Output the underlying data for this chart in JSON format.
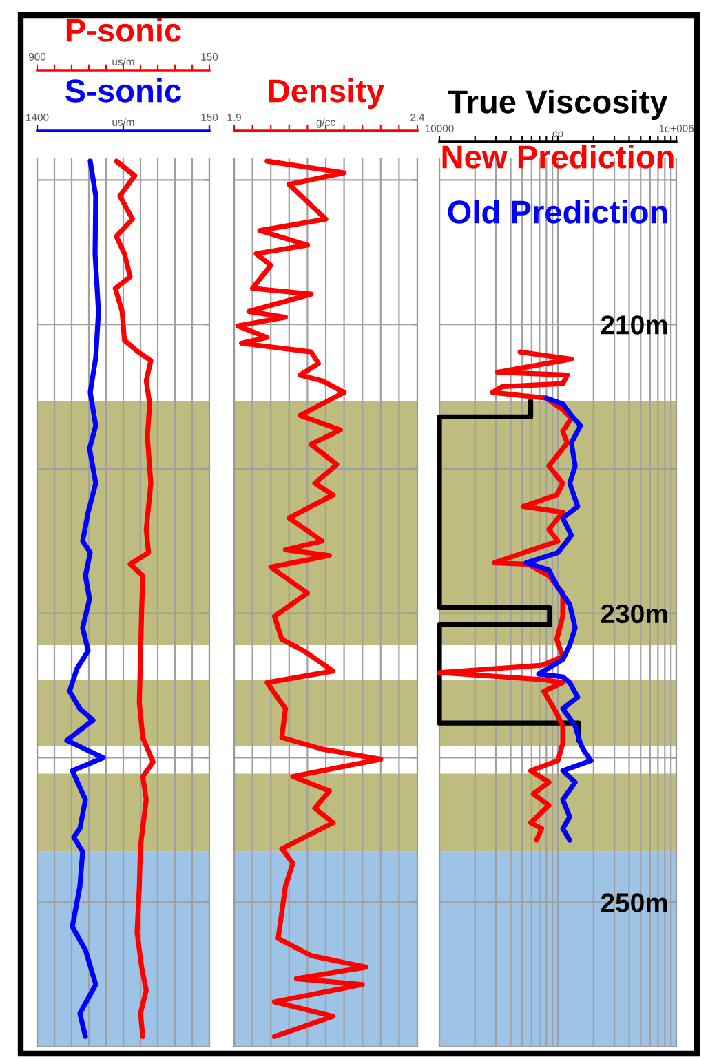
{
  "chart_data": [
    {
      "type": "line",
      "ylim": [
        260,
        198.5
      ],
      "yticks": [
        {
          "value": 200,
          "label": null
        },
        {
          "value": 210,
          "label": null
        },
        {
          "value": 220,
          "label": null
        },
        {
          "value": 230,
          "label": null
        },
        {
          "value": 240,
          "label": null
        },
        {
          "value": 250,
          "label": null
        }
      ],
      "tick_labels": "x",
      "grid": true,
      "xlim": [
        900,
        150
      ],
      "xticks": [
        900,
        {
          "value": 825,
          "label": null
        },
        {
          "value": 750,
          "label": null
        },
        {
          "value": 675,
          "label": null
        },
        {
          "value": 600,
          "label": null
        },
        {
          "value": 525,
          "label": null
        },
        {
          "value": 450,
          "label": null
        },
        {
          "value": 375,
          "label": null
        },
        {
          "value": 300,
          "label": null
        },
        {
          "value": 225,
          "label": null
        },
        150
      ],
      "xlabel": "us/m",
      "x2lim": [
        1400,
        150
      ],
      "x2ticks": [
        1400,
        {
          "value": 775,
          "label": null
        },
        150
      ],
      "x2label": "us/m",
      "bands": [
        {
          "axis": "y",
          "from": 215.3,
          "to": 232.2,
          "color": "#bfbc80"
        },
        {
          "axis": "y",
          "from": 234.6,
          "to": 239.2,
          "color": "#bfbc80"
        },
        {
          "axis": "y",
          "from": 241.1,
          "to": 246.5,
          "color": "#bfbc80"
        },
        {
          "axis": "y",
          "from": 246.5,
          "to": 260,
          "color": "#9dc3e6"
        }
      ],
      "series": [
        {
          "name": "P-sonic",
          "color": "#ff0000",
          "x": [
            555,
            475,
            540,
            485,
            555,
            520,
            495,
            560,
            530,
            520,
            460,
            405,
            425,
            410,
            420,
            405,
            425,
            415,
            495,
            440,
            445,
            450,
            455,
            440,
            395,
            440,
            425,
            450,
            455,
            465,
            445,
            425,
            450,
            440
          ],
          "values": [
            198.7,
            199.7,
            201.1,
            202.7,
            203.9,
            205.1,
            206.7,
            207.5,
            209.1,
            211.1,
            211.9,
            212.5,
            213.9,
            215.5,
            217.8,
            221.0,
            224.2,
            225.8,
            226.6,
            227.4,
            229.8,
            233.0,
            236.2,
            238.6,
            240.3,
            241.3,
            242.9,
            246.1,
            248.9,
            252.1,
            254.5,
            256.1,
            257.7,
            259.3
          ]
        },
        {
          "name": "S-sonic",
          "color": "#0000ff",
          "axis": "x2",
          "x": [
            1015,
            975,
            980,
            955,
            975,
            1015,
            975,
            1020,
            975,
            1030,
            1070,
            1015,
            1050,
            1020,
            1070,
            1030,
            1110,
            1165,
            1090,
            995,
            1185,
            920,
            1145,
            1050,
            1090,
            1135,
            1070,
            1090,
            1145,
            1050,
            975,
            1090,
            1050
          ],
          "values": [
            198.7,
            201.1,
            205.1,
            209.1,
            212.3,
            214.7,
            217.0,
            218.6,
            221.0,
            223.0,
            225.0,
            225.8,
            227.4,
            229.0,
            231.0,
            232.6,
            233.8,
            235.4,
            236.6,
            237.4,
            238.8,
            240.0,
            240.9,
            242.9,
            244.9,
            245.5,
            246.5,
            248.9,
            251.7,
            253.3,
            255.7,
            257.7,
            259.3
          ]
        }
      ]
    },
    {
      "type": "line",
      "ylim": [
        260,
        198.5
      ],
      "yticks": [
        {
          "value": 200,
          "label": null
        },
        {
          "value": 210,
          "label": null
        },
        {
          "value": 220,
          "label": null
        },
        {
          "value": 230,
          "label": null
        },
        {
          "value": 240,
          "label": null
        },
        {
          "value": 250,
          "label": null
        }
      ],
      "tick_labels": "x",
      "grid": true,
      "xlim": [
        1.9,
        2.4
      ],
      "xticks": [
        1.9,
        {
          "value": 1.95,
          "label": null
        },
        {
          "value": 2.0,
          "label": null
        },
        {
          "value": 2.05,
          "label": null
        },
        {
          "value": 2.1,
          "label": null
        },
        {
          "value": 2.15,
          "label": null
        },
        {
          "value": 2.2,
          "label": null
        },
        {
          "value": 2.25,
          "label": null
        },
        {
          "value": 2.3,
          "label": null
        },
        {
          "value": 2.35,
          "label": null
        },
        2.4
      ],
      "xlabel": "g/cc",
      "bands": [
        {
          "axis": "y",
          "from": 215.3,
          "to": 232.2,
          "color": "#bfbc80"
        },
        {
          "axis": "y",
          "from": 234.6,
          "to": 239.2,
          "color": "#bfbc80"
        },
        {
          "axis": "y",
          "from": 241.1,
          "to": 246.5,
          "color": "#bfbc80"
        },
        {
          "axis": "y",
          "from": 246.5,
          "to": 260,
          "color": "#9dc3e6"
        }
      ],
      "series": [
        {
          "name": "Density",
          "color": "#ff0000",
          "x": [
            1.99,
            2.2,
            2.05,
            2.15,
            1.97,
            2.1,
            1.96,
            2.0,
            1.95,
            2.11,
            1.94,
            2.04,
            1.91,
            1.99,
            1.92,
            2.11,
            2.13,
            2.08,
            2.14,
            2.2,
            2.08,
            2.19,
            2.11,
            2.18,
            2.12,
            2.17,
            2.05,
            2.14,
            2.04,
            2.16,
            2.0,
            2.1,
            2.01,
            2.03,
            2.09,
            2.17,
            1.99,
            2.04,
            2.03,
            2.14,
            2.3,
            2.06,
            2.16,
            2.12,
            2.17,
            2.03,
            2.06,
            2.04,
            2.02,
            2.11,
            2.26,
            2.07,
            2.25,
            2.01,
            2.17,
            2.01
          ],
          "values": [
            198.7,
            199.5,
            200.3,
            202.7,
            203.5,
            204.5,
            205.1,
            205.9,
            207.5,
            207.9,
            209.1,
            209.5,
            210.1,
            210.9,
            211.3,
            211.9,
            212.7,
            213.5,
            213.9,
            214.7,
            216.3,
            217.3,
            218.3,
            219.7,
            221.0,
            221.8,
            223.4,
            225.0,
            225.6,
            226.0,
            226.8,
            228.6,
            230.2,
            231.8,
            232.6,
            234.0,
            234.8,
            236.6,
            238.6,
            239.4,
            240.1,
            241.3,
            242.3,
            243.5,
            244.5,
            246.3,
            247.3,
            248.9,
            252.5,
            253.7,
            254.5,
            255.3,
            255.7,
            256.9,
            257.9,
            259.3
          ]
        }
      ]
    },
    {
      "type": "line",
      "log": "x",
      "ylim": [
        260,
        198.5
      ],
      "yticks": [
        {
          "value": 200,
          "label": null
        },
        {
          "value": 210,
          "label": "210m"
        },
        {
          "value": 220,
          "label": null
        },
        {
          "value": 230,
          "label": "230m"
        },
        {
          "value": 240,
          "label": null
        },
        {
          "value": 250,
          "label": "250m"
        }
      ],
      "grid": true,
      "xlim": [
        10000,
        1000000
      ],
      "xticks": [
        {
          "value": 10000,
          "label": "10000"
        },
        {
          "value": 20000,
          "label": null
        },
        {
          "value": 30000,
          "label": null
        },
        {
          "value": 40000,
          "label": null
        },
        {
          "value": 50000,
          "label": null
        },
        {
          "value": 60000,
          "label": null
        },
        {
          "value": 70000,
          "label": null
        },
        {
          "value": 80000,
          "label": null
        },
        {
          "value": 90000,
          "label": null
        },
        {
          "value": 100000,
          "label": null
        },
        {
          "value": 200000,
          "label": null
        },
        {
          "value": 300000,
          "label": null
        },
        {
          "value": 400000,
          "label": null
        },
        {
          "value": 500000,
          "label": null
        },
        {
          "value": 600000,
          "label": null
        },
        {
          "value": 700000,
          "label": null
        },
        {
          "value": 800000,
          "label": null
        },
        {
          "value": 900000,
          "label": null
        },
        {
          "value": 1000000,
          "label": "1e+006"
        }
      ],
      "xlabel": "cp",
      "bands": [
        {
          "axis": "y",
          "from": 215.3,
          "to": 232.2,
          "color": "#bfbc80"
        },
        {
          "axis": "y",
          "from": 234.6,
          "to": 239.2,
          "color": "#bfbc80"
        },
        {
          "axis": "y",
          "from": 241.1,
          "to": 246.5,
          "color": "#bfbc80"
        },
        {
          "axis": "y",
          "from": 246.5,
          "to": 260,
          "color": "#9dc3e6"
        }
      ],
      "series": [
        {
          "name": "True Viscosity",
          "color": "#000000",
          "x": [
            59000,
            59000,
            10000,
            10000,
            85000,
            85000,
            10000,
            10000,
            150000,
            150000
          ],
          "values": [
            215.3,
            216.4,
            216.4,
            229.6,
            229.6,
            230.8,
            230.8,
            237.6,
            237.6,
            238.8
          ]
        },
        {
          "name": "New Prediction",
          "color": "#ff0000",
          "x": [
            48000,
            130000,
            31000,
            120000,
            110000,
            34000,
            28000,
            80000,
            110000,
            130000,
            110000,
            120000,
            84000,
            110000,
            98000,
            51000,
            110000,
            84000,
            100000,
            29000,
            56000,
            84000,
            110000,
            110000,
            98000,
            110000,
            73000,
            10000,
            76000,
            110000,
            76000,
            93000,
            110000,
            110000,
            100000,
            59000,
            84000,
            62000,
            84000,
            59000,
            73000,
            66000
          ],
          "values": [
            211.9,
            212.4,
            213.3,
            213.5,
            214.1,
            214.3,
            214.7,
            215.1,
            215.9,
            216.5,
            217.4,
            218.2,
            219.8,
            221.0,
            221.8,
            222.6,
            223.0,
            224.2,
            225.0,
            226.5,
            226.6,
            227.4,
            228.6,
            230.2,
            231.8,
            233.0,
            233.6,
            234.1,
            234.6,
            234.8,
            235.4,
            236.6,
            237.8,
            239.0,
            240.2,
            240.9,
            241.7,
            242.5,
            243.3,
            244.5,
            244.9,
            245.7
          ]
        },
        {
          "name": "Old Prediction",
          "color": "#0000ff",
          "x": [
            80000,
            110000,
            130000,
            155000,
            130000,
            140000,
            126000,
            147000,
            110000,
            130000,
            100000,
            54000,
            84000,
            100000,
            126000,
            140000,
            126000,
            110000,
            69000,
            110000,
            126000,
            147000,
            110000,
            140000,
            155000,
            163000,
            190000,
            110000,
            140000,
            110000,
            126000,
            110000,
            126000
          ],
          "values": [
            215.1,
            215.5,
            216.3,
            217.0,
            218.2,
            219.8,
            221.0,
            222.6,
            223.4,
            224.6,
            225.8,
            226.5,
            227.0,
            228.2,
            229.4,
            231.0,
            232.2,
            233.2,
            234.2,
            234.4,
            234.8,
            235.8,
            236.6,
            237.8,
            239.0,
            239.4,
            240.2,
            240.9,
            241.7,
            242.9,
            244.1,
            244.9,
            245.7
          ]
        }
      ]
    }
  ]
}
